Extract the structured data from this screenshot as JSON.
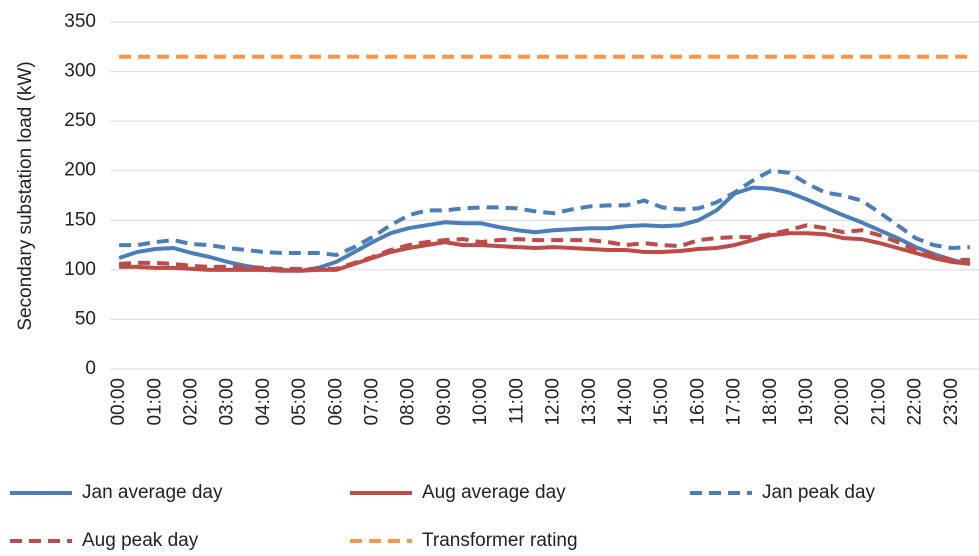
{
  "chart_data": {
    "type": "line",
    "y_label": "Secondary substation load (kW)",
    "categories": [
      "00:00",
      null,
      "01:00",
      null,
      "02:00",
      null,
      "03:00",
      null,
      "04:00",
      null,
      "05:00",
      null,
      "06:00",
      null,
      "07:00",
      null,
      "08:00",
      null,
      "09:00",
      null,
      "10:00",
      null,
      "11:00",
      null,
      "12:00",
      null,
      "13:00",
      null,
      "14:00",
      null,
      "15:00",
      null,
      "16:00",
      null,
      "17:00",
      null,
      "18:00",
      null,
      "19:00",
      null,
      "20:00",
      null,
      "21:00",
      null,
      "22:00",
      null,
      "23:00",
      null
    ],
    "series": [
      {
        "name": "Jan average day",
        "color": "#4a7ebb",
        "dashed": false,
        "values": [
          112,
          118,
          121,
          122,
          117,
          113,
          108,
          104,
          101,
          100,
          99,
          102,
          108,
          118,
          128,
          137,
          142,
          145,
          148,
          147,
          147,
          143,
          140,
          138,
          140,
          141,
          142,
          142,
          144,
          145,
          144,
          145,
          150,
          160,
          177,
          183,
          182,
          178,
          171,
          163,
          155,
          148,
          140,
          132,
          123,
          116,
          110,
          106
        ]
      },
      {
        "name": "Aug average day",
        "color": "#be4b48",
        "dashed": false,
        "values": [
          103,
          103,
          102,
          102,
          101,
          100,
          100,
          100,
          100,
          99,
          99,
          100,
          100,
          106,
          112,
          118,
          122,
          125,
          128,
          125,
          125,
          124,
          123,
          122,
          123,
          122,
          121,
          120,
          120,
          118,
          118,
          119,
          121,
          122,
          125,
          130,
          135,
          137,
          137,
          136,
          132,
          131,
          127,
          122,
          117,
          112,
          108,
          106
        ]
      },
      {
        "name": "Jan peak day",
        "color": "#4a7ebb",
        "dashed": true,
        "values": [
          125,
          125,
          128,
          130,
          126,
          125,
          122,
          120,
          118,
          117,
          117,
          117,
          115,
          123,
          133,
          145,
          155,
          160,
          160,
          162,
          163,
          163,
          162,
          159,
          157,
          161,
          164,
          165,
          165,
          170,
          163,
          161,
          162,
          168,
          178,
          190,
          200,
          198,
          187,
          178,
          175,
          170,
          158,
          145,
          132,
          125,
          122,
          123
        ]
      },
      {
        "name": "Aug peak day",
        "color": "#be4b48",
        "dashed": true,
        "values": [
          106,
          107,
          107,
          106,
          104,
          103,
          103,
          103,
          102,
          101,
          101,
          101,
          101,
          107,
          113,
          120,
          125,
          128,
          130,
          131,
          128,
          130,
          131,
          130,
          130,
          130,
          130,
          128,
          125,
          127,
          125,
          124,
          130,
          132,
          133,
          133,
          136,
          140,
          145,
          142,
          138,
          140,
          135,
          128,
          120,
          115,
          110,
          110
        ]
      },
      {
        "name": "Transformer rating",
        "color": "#f79646",
        "dashed": true,
        "values": [
          315,
          315,
          315,
          315,
          315,
          315,
          315,
          315,
          315,
          315,
          315,
          315,
          315,
          315,
          315,
          315,
          315,
          315,
          315,
          315,
          315,
          315,
          315,
          315,
          315,
          315,
          315,
          315,
          315,
          315,
          315,
          315,
          315,
          315,
          315,
          315,
          315,
          315,
          315,
          315,
          315,
          315,
          315,
          315,
          315,
          315,
          315,
          315
        ]
      }
    ],
    "ylim": [
      0,
      350
    ],
    "yticks": [
      0,
      50,
      100,
      150,
      200,
      250,
      300,
      350
    ],
    "grid": true
  }
}
